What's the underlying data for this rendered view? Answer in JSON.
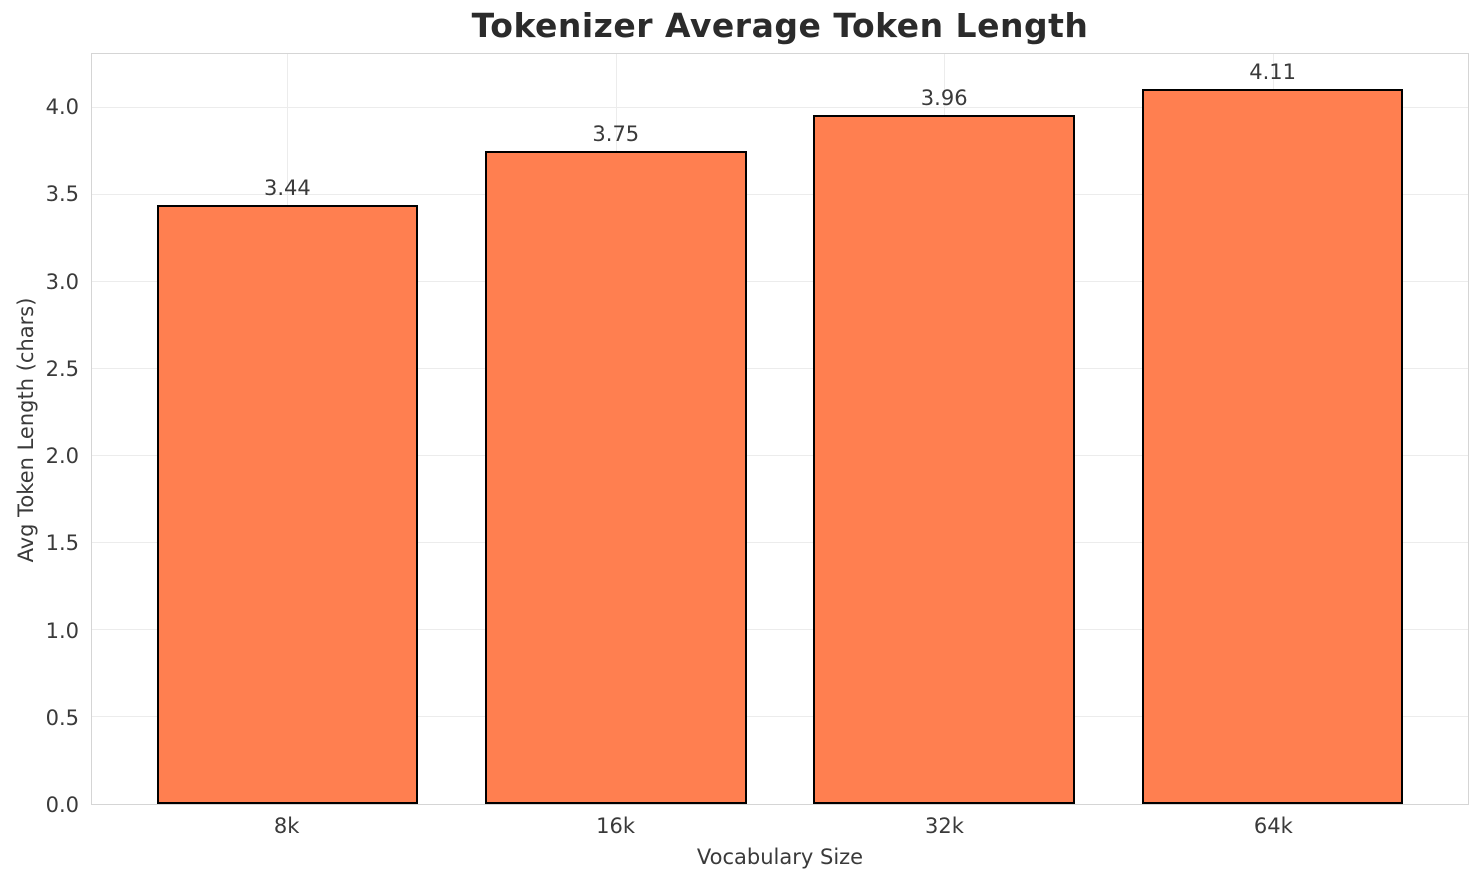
{
  "chart_data": {
    "type": "bar",
    "title": "Tokenizer Average Token Length",
    "xlabel": "Vocabulary Size",
    "ylabel": "Avg Token Length (chars)",
    "categories": [
      "8k",
      "16k",
      "32k",
      "64k"
    ],
    "values": [
      3.44,
      3.75,
      3.96,
      4.11
    ],
    "bar_labels": [
      "3.44",
      "3.75",
      "3.96",
      "4.11"
    ],
    "yticks": [
      0.0,
      0.5,
      1.0,
      1.5,
      2.0,
      2.5,
      3.0,
      3.5,
      4.0
    ],
    "ytick_labels": [
      "0.0",
      "0.5",
      "1.0",
      "1.5",
      "2.0",
      "2.5",
      "3.0",
      "3.5",
      "4.0"
    ],
    "ylim": [
      0,
      4.31
    ],
    "grid": "on",
    "legend": "none",
    "colors": {
      "bar_fill": "#FF7F50",
      "bar_edge": "#000000",
      "grid_line": "#ECECEC",
      "spine": "#D5D5D5",
      "tick_text": "#3A3A3A",
      "label_text": "#3A3A3A",
      "title_text": "#2B2B2B",
      "background": "#FFFFFF"
    }
  }
}
